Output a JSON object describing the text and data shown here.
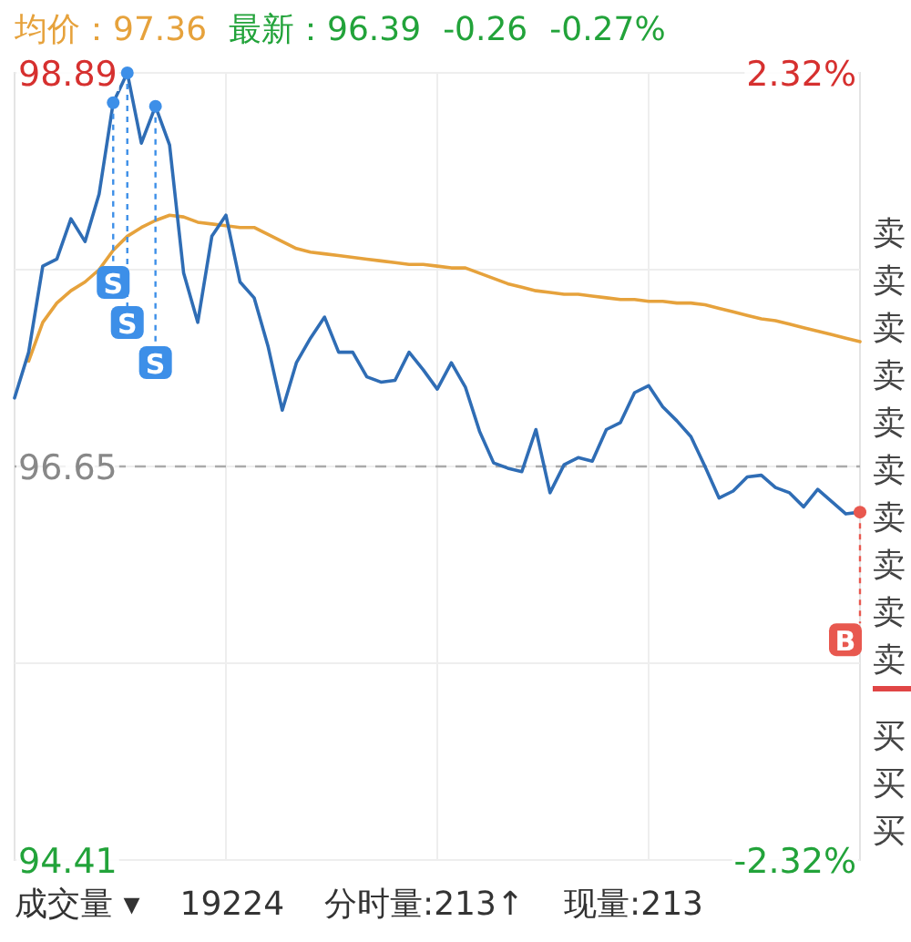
{
  "chart_data": {
    "type": "line",
    "categories": [
      null,
      null,
      null,
      null,
      null,
      null,
      null,
      null,
      null,
      null,
      null,
      null,
      null,
      null,
      null,
      null,
      null,
      null,
      null,
      null,
      null,
      null,
      null,
      null,
      null,
      null,
      null,
      null,
      null,
      null,
      null,
      null,
      null,
      null,
      null,
      null,
      null,
      null,
      null,
      null,
      null,
      null,
      null,
      null,
      null,
      null,
      null,
      null,
      null,
      null,
      null,
      null,
      null,
      null,
      null,
      null,
      null,
      null,
      null,
      null,
      null
    ],
    "series": [
      {
        "color": "#2f6db5",
        "values": [
          97.04,
          97.3,
          97.79,
          97.83,
          98.06,
          97.93,
          98.2,
          98.72,
          98.89,
          98.49,
          98.7,
          98.48,
          97.75,
          97.47,
          97.96,
          98.08,
          97.7,
          97.61,
          97.33,
          96.97,
          97.24,
          97.38,
          97.5,
          97.3,
          97.3,
          97.16,
          97.13,
          97.14,
          97.3,
          97.2,
          97.09,
          97.24,
          97.1,
          96.85,
          96.67,
          96.64,
          96.62,
          96.86,
          96.5,
          96.66,
          96.7,
          96.68,
          96.86,
          96.9,
          97.07,
          97.11,
          96.99,
          96.91,
          96.82,
          96.65,
          96.47,
          96.51,
          96.59,
          96.6,
          96.53,
          96.5,
          96.42,
          96.52,
          96.45,
          96.38,
          96.39
        ]
      },
      {
        "color": "#e6a23c",
        "values": [
          null,
          97.25,
          97.47,
          97.58,
          97.65,
          97.7,
          97.77,
          97.88,
          97.96,
          98.01,
          98.05,
          98.08,
          98.07,
          98.04,
          98.03,
          98.02,
          98.01,
          98.01,
          97.97,
          97.93,
          97.89,
          97.87,
          97.86,
          97.85,
          97.84,
          97.83,
          97.82,
          97.81,
          97.8,
          97.8,
          97.79,
          97.78,
          97.78,
          97.75,
          97.72,
          97.69,
          97.67,
          97.65,
          97.64,
          97.63,
          97.63,
          97.62,
          97.61,
          97.6,
          97.6,
          97.59,
          97.59,
          97.58,
          97.58,
          97.57,
          97.55,
          97.53,
          97.51,
          97.49,
          97.48,
          97.46,
          97.44,
          97.42,
          97.4,
          97.38,
          97.36
        ]
      }
    ],
    "ylim": [
      94.41,
      98.89
    ],
    "yticks": [
      98.89,
      {
        "value": 97.77,
        "label": null
      },
      96.65,
      {
        "value": 95.53,
        "label": null
      },
      94.41
    ],
    "y2lim": [
      -2.32,
      2.32
    ],
    "y2ticks": [
      {
        "value": 2.32,
        "label": "2.32%"
      },
      {
        "value": -2.32,
        "label": "-2.32%"
      }
    ],
    "ref_lines": [
      {
        "axis": "y",
        "value": 96.65,
        "color": "#aaaaaa",
        "line_style": "dashed"
      }
    ],
    "grid": true,
    "annotations": [
      "均价：97.36",
      "最新：96.39",
      "-0.26",
      "-0.27%",
      "成交量 ▾",
      "19224",
      "分时量:213↑",
      "现量:213",
      "卖",
      "卖",
      "卖",
      "卖",
      "卖",
      "卖",
      "卖",
      "卖",
      "卖",
      "卖",
      "买",
      "买",
      "买",
      {
        "text": "S",
        "y": 98.72
      },
      {
        "text": "S",
        "y": 98.89
      },
      {
        "text": "S",
        "y": 98.7
      },
      {
        "text": "B",
        "y": 96.39
      }
    ]
  }
}
